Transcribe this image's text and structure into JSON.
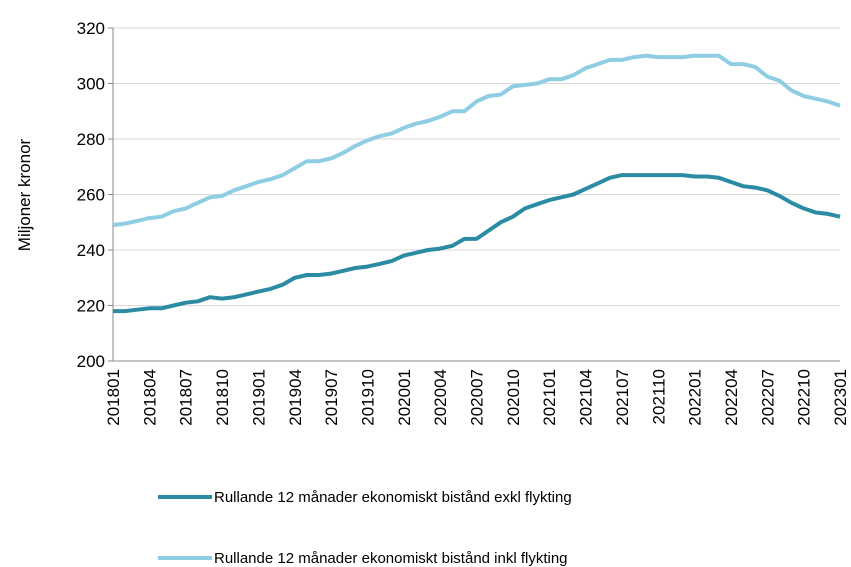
{
  "chart_data": {
    "type": "line",
    "y_label": "Miljoner kronor",
    "categories": [
      "201801",
      null,
      null,
      "201804",
      null,
      null,
      "201807",
      null,
      null,
      "201810",
      null,
      null,
      "201901",
      null,
      null,
      "201904",
      null,
      null,
      "201907",
      null,
      null,
      "201910",
      null,
      null,
      "202001",
      null,
      null,
      "202004",
      null,
      null,
      "202007",
      null,
      null,
      "202010",
      null,
      null,
      "202101",
      null,
      null,
      "202104",
      null,
      null,
      "202107",
      null,
      null,
      "202110",
      null,
      null,
      "202201",
      null,
      null,
      "202204",
      null,
      null,
      "202207",
      null,
      null,
      "202210",
      null,
      null,
      "202301"
    ],
    "series": [
      {
        "name": "Rullande 12 månader ekonomiskt bistånd exkl flykting",
        "color": "#2a8ba3",
        "values": [
          218,
          218,
          218.5,
          219,
          219,
          220,
          221,
          221.5,
          223,
          222.5,
          223,
          224,
          225,
          226,
          227.5,
          230,
          231,
          231,
          231.5,
          232.5,
          233.5,
          234,
          235,
          236,
          238,
          239,
          240,
          240.5,
          241.5,
          244,
          244,
          247,
          250,
          252,
          255,
          256.5,
          258,
          259,
          260,
          262,
          264,
          266,
          267,
          267,
          267,
          267,
          267,
          267,
          266.5,
          266.5,
          266,
          264.5,
          263,
          262.5,
          261.5,
          259.5,
          257,
          255,
          253.5,
          253,
          252
        ]
      },
      {
        "name": "Rullande 12 månader ekonomiskt bistånd inkl flykting",
        "color": "#8ecde3",
        "values": [
          249,
          249.5,
          250.5,
          251.5,
          252,
          254,
          255,
          257,
          259,
          259.5,
          261.5,
          263,
          264.5,
          265.5,
          267,
          269.5,
          272,
          272,
          273,
          275,
          277.5,
          279.5,
          281,
          282,
          284,
          285.5,
          286.5,
          288,
          290,
          290,
          293.5,
          295.5,
          296,
          299,
          299.5,
          300,
          301.5,
          301.5,
          303,
          305.5,
          307,
          308.5,
          308.5,
          309.5,
          310,
          309.5,
          309.5,
          309.5,
          310,
          310,
          310,
          307,
          307,
          306,
          302.5,
          301,
          297.5,
          295.5,
          294.5,
          293.5,
          292
        ]
      }
    ],
    "ylim": [
      200,
      320
    ],
    "yticks": [
      200,
      220,
      240,
      260,
      280,
      300,
      320
    ],
    "grid": true,
    "legend": "bottom"
  }
}
